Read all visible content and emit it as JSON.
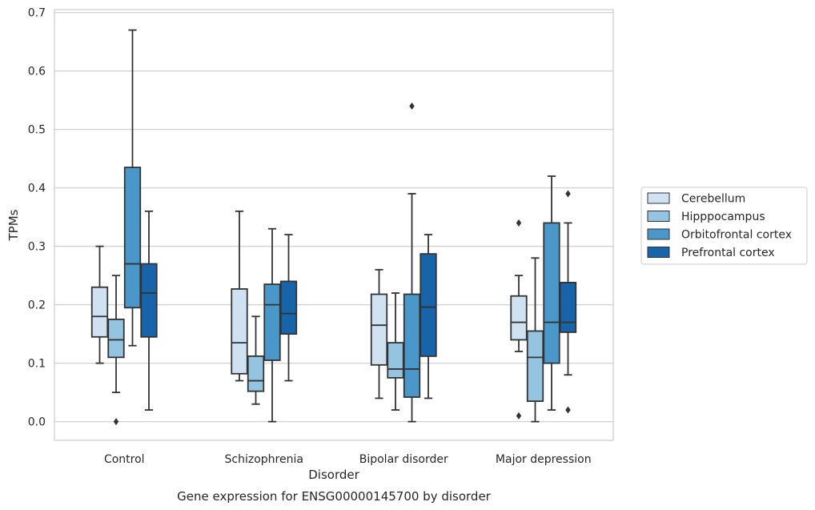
{
  "chart_data": {
    "type": "box",
    "title": "",
    "caption": "Gene expression for ENSG00000145700 by disorder",
    "xlabel": "Disorder",
    "ylabel": "TPMs",
    "ylim": [
      -0.032,
      0.705
    ],
    "yticks": [
      "0.0",
      "0.1",
      "0.2",
      "0.3",
      "0.4",
      "0.5",
      "0.6",
      "0.7"
    ],
    "ytick_values": [
      0.0,
      0.1,
      0.2,
      0.3,
      0.4,
      0.5,
      0.6,
      0.7
    ],
    "grid": "horizontal",
    "legend_position": "right",
    "categories": [
      "Control",
      "Schizophrenia",
      "Bipolar disorder",
      "Major depression"
    ],
    "series": [
      {
        "name": "Cerebellum",
        "color": "#d0e1f2",
        "boxes": [
          {
            "whislo": 0.1,
            "q1": 0.145,
            "med": 0.18,
            "q3": 0.23,
            "whishi": 0.3,
            "fliers": []
          },
          {
            "whislo": 0.07,
            "q1": 0.082,
            "med": 0.135,
            "q3": 0.227,
            "whishi": 0.36,
            "fliers": []
          },
          {
            "whislo": 0.04,
            "q1": 0.097,
            "med": 0.165,
            "q3": 0.218,
            "whishi": 0.26,
            "fliers": []
          },
          {
            "whislo": 0.12,
            "q1": 0.14,
            "med": 0.17,
            "q3": 0.215,
            "whishi": 0.25,
            "fliers": [
              0.34,
              0.01
            ]
          }
        ]
      },
      {
        "name": "Hipppocampus",
        "color": "#94c4df",
        "boxes": [
          {
            "whislo": 0.05,
            "q1": 0.11,
            "med": 0.14,
            "q3": 0.175,
            "whishi": 0.25,
            "fliers": [
              0.0
            ]
          },
          {
            "whislo": 0.03,
            "q1": 0.052,
            "med": 0.07,
            "q3": 0.112,
            "whishi": 0.18,
            "fliers": []
          },
          {
            "whislo": 0.02,
            "q1": 0.075,
            "med": 0.09,
            "q3": 0.135,
            "whishi": 0.22,
            "fliers": []
          },
          {
            "whislo": 0.0,
            "q1": 0.035,
            "med": 0.11,
            "q3": 0.155,
            "whishi": 0.28,
            "fliers": []
          }
        ]
      },
      {
        "name": "Orbitofrontal cortex",
        "color": "#4a98c9",
        "boxes": [
          {
            "whislo": 0.13,
            "q1": 0.195,
            "med": 0.27,
            "q3": 0.435,
            "whishi": 0.67,
            "fliers": []
          },
          {
            "whislo": 0.0,
            "q1": 0.105,
            "med": 0.2,
            "q3": 0.235,
            "whishi": 0.33,
            "fliers": []
          },
          {
            "whislo": 0.0,
            "q1": 0.042,
            "med": 0.09,
            "q3": 0.218,
            "whishi": 0.39,
            "fliers": [
              0.54
            ]
          },
          {
            "whislo": 0.02,
            "q1": 0.1,
            "med": 0.17,
            "q3": 0.34,
            "whishi": 0.42,
            "fliers": []
          }
        ]
      },
      {
        "name": "Prefrontal cortex",
        "color": "#1764ab",
        "boxes": [
          {
            "whislo": 0.02,
            "q1": 0.145,
            "med": 0.22,
            "q3": 0.27,
            "whishi": 0.36,
            "fliers": []
          },
          {
            "whislo": 0.07,
            "q1": 0.15,
            "med": 0.185,
            "q3": 0.24,
            "whishi": 0.32,
            "fliers": []
          },
          {
            "whislo": 0.04,
            "q1": 0.112,
            "med": 0.196,
            "q3": 0.287,
            "whishi": 0.32,
            "fliers": []
          },
          {
            "whislo": 0.08,
            "q1": 0.153,
            "med": 0.17,
            "q3": 0.238,
            "whishi": 0.34,
            "fliers": [
              0.39,
              0.02
            ]
          }
        ]
      }
    ]
  }
}
